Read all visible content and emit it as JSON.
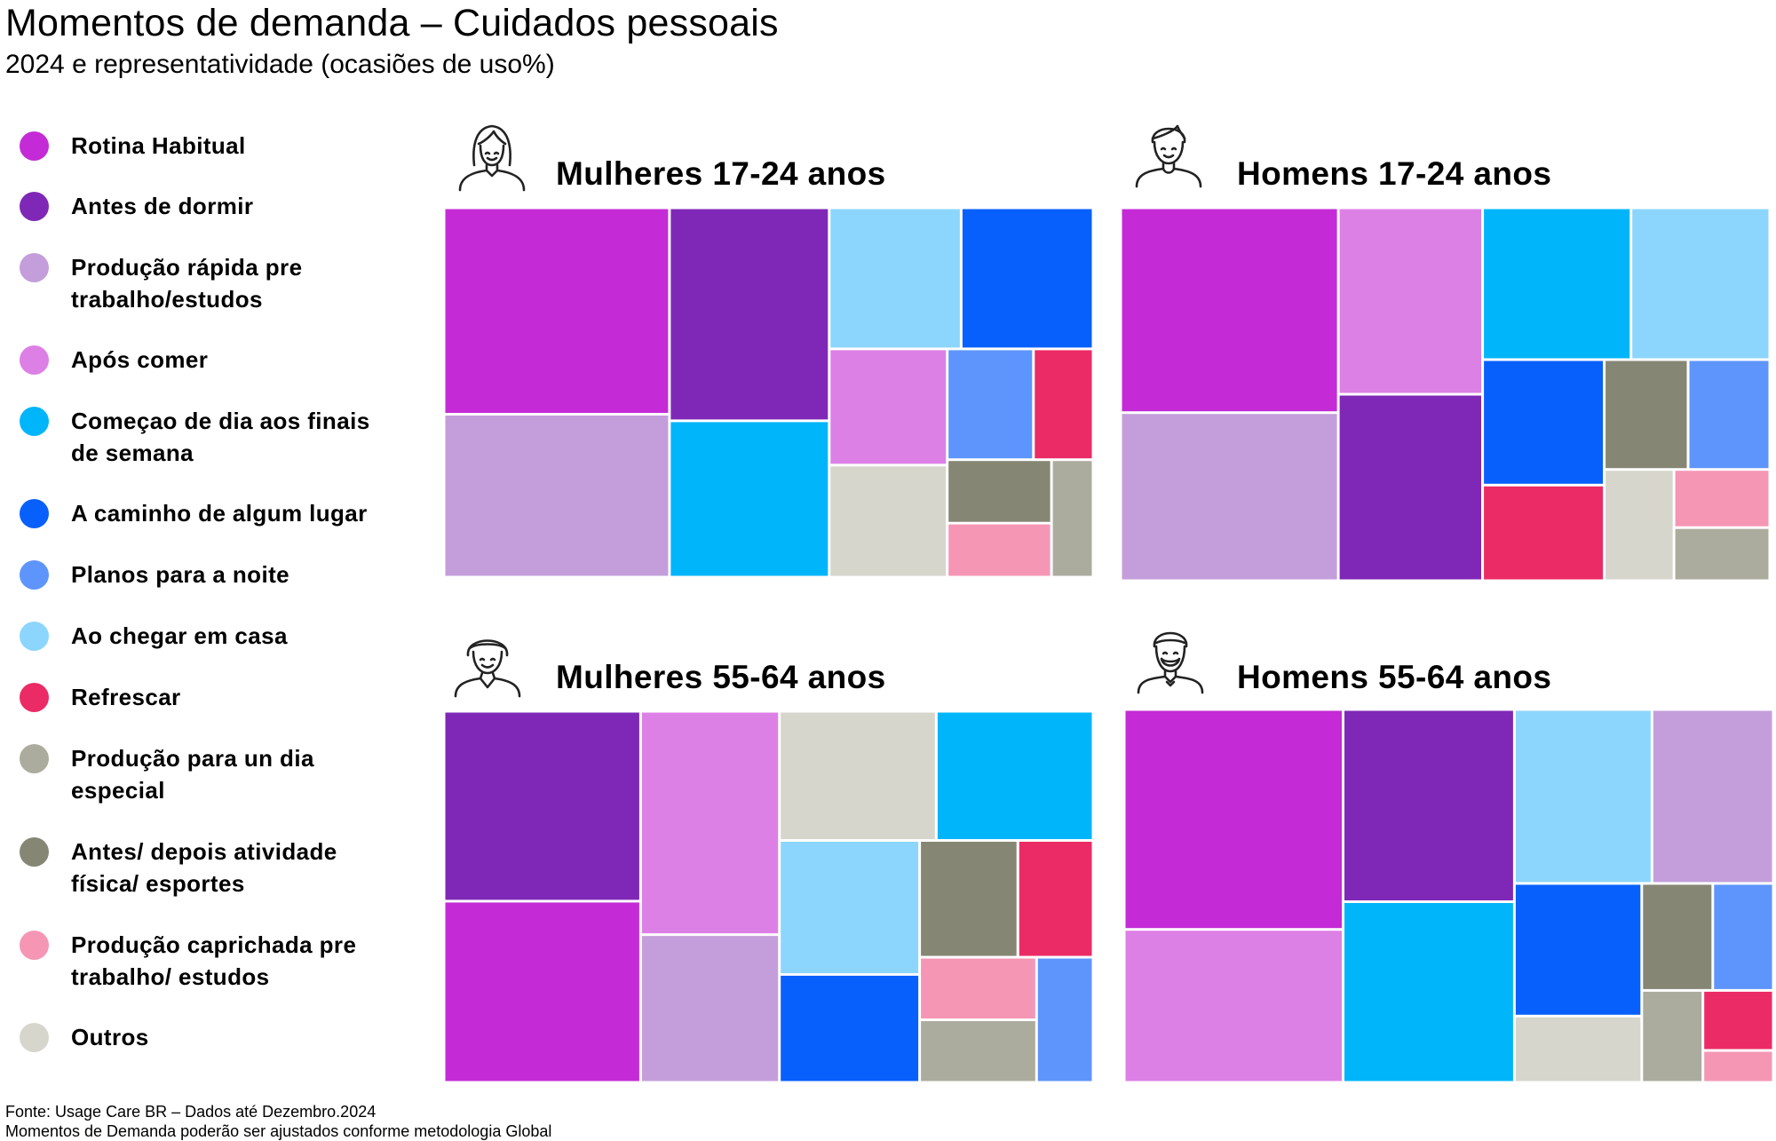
{
  "title": "Momentos de demanda – Cuidados pessoais",
  "subtitle": "2024 e representatividade (ocasiões de uso%)",
  "colors": {
    "Rotina Habitual": "#c42bd6",
    "Antes de dormir": "#7f28b7",
    "Produção rápida pre trabalho/estudos": "#c49edb",
    "Após comer": "#dd80e6",
    "Começao de dia aos finais de semana": "#00b5fa",
    "A caminho de algum lugar": "#0860fc",
    "Planos para a noite": "#5e95fc",
    "Ao chegar em casa": "#8cd6fd",
    "Refrescar": "#eb2b65",
    "Produção para un dia especial": "#acac9e",
    "Antes/ depois atividade física/ esportes": "#858674",
    "Produção caprichada pre trabalho/ estudos": "#f596b5",
    "Outros": "#d6d6cd"
  },
  "legend": {
    "items": [
      {
        "label": "Rotina Habitual",
        "color": "#c42bd6"
      },
      {
        "label": "Antes de dormir",
        "color": "#7f28b7"
      },
      {
        "label": "Produção rápida pre trabalho/estudos",
        "color": "#c49edb"
      },
      {
        "label": "Após comer",
        "color": "#dd80e6"
      },
      {
        "label": "Começao de dia aos finais de semana",
        "color": "#00b5fa"
      },
      {
        "label": "A caminho de algum lugar",
        "color": "#0860fc"
      },
      {
        "label": "Planos para a noite",
        "color": "#5e95fc"
      },
      {
        "label": "Ao chegar em casa",
        "color": "#8cd6fd"
      },
      {
        "label": "Refrescar",
        "color": "#eb2b65"
      },
      {
        "label": "Produção para un dia especial",
        "color": "#acac9e"
      },
      {
        "label": "Antes/ depois atividade física/ esportes",
        "color": "#858674"
      },
      {
        "label": "Produção caprichada pre trabalho/ estudos",
        "color": "#f596b5"
      },
      {
        "label": "Outros",
        "color": "#d6d6cd"
      }
    ]
  },
  "chart_data": [
    {
      "type": "treemap",
      "title": "Mulheres 17-24 anos",
      "avatar": "woman-long-hair-icon",
      "series": [
        {
          "name": "Rotina Habitual",
          "value": 19.0
        },
        {
          "name": "Produção rápida pre trabalho/estudos",
          "value": 15.0
        },
        {
          "name": "Antes de dormir",
          "value": 13.9
        },
        {
          "name": "Começao de dia aos finais de semana",
          "value": 10.2
        },
        {
          "name": "Ao chegar em casa",
          "value": 7.6
        },
        {
          "name": "A caminho de algum lugar",
          "value": 7.6
        },
        {
          "name": "Após comer",
          "value": 5.6
        },
        {
          "name": "Outros",
          "value": 5.4
        },
        {
          "name": "Planos para a noite",
          "value": 3.9
        },
        {
          "name": "Refrescar",
          "value": 2.7
        },
        {
          "name": "Antes/ depois atividade física/ esportes",
          "value": 2.7
        },
        {
          "name": "Produção caprichada pre trabalho/ estudos",
          "value": 2.3
        },
        {
          "name": "Produção para un dia especial",
          "value": 2.0
        }
      ]
    },
    {
      "type": "treemap",
      "title": "Homens 17-24 anos",
      "avatar": "man-short-hair-icon",
      "series": [
        {
          "name": "Rotina Habitual",
          "value": 18.4
        },
        {
          "name": "Produção rápida pre trabalho/estudos",
          "value": 15.1
        },
        {
          "name": "Após comer",
          "value": 11.1
        },
        {
          "name": "Antes de dormir",
          "value": 11.1
        },
        {
          "name": "Começao de dia aos finais de semana",
          "value": 9.3
        },
        {
          "name": "Ao chegar em casa",
          "value": 8.7
        },
        {
          "name": "A caminho de algum lugar",
          "value": 6.3
        },
        {
          "name": "Refrescar",
          "value": 4.8
        },
        {
          "name": "Antes/ depois atividade física/ esportes",
          "value": 3.8
        },
        {
          "name": "Outros",
          "value": 3.2
        },
        {
          "name": "Planos para a noite",
          "value": 3.7
        },
        {
          "name": "Produção caprichada pre trabalho/ estudos",
          "value": 2.3
        },
        {
          "name": "Produção para un dia especial",
          "value": 2.1
        }
      ]
    },
    {
      "type": "treemap",
      "title": "Mulheres 55-64 anos",
      "avatar": "older-woman-icon",
      "series": [
        {
          "name": "Antes de dormir",
          "value": 15.3
        },
        {
          "name": "Rotina Habitual",
          "value": 14.6
        },
        {
          "name": "Após comer",
          "value": 12.7
        },
        {
          "name": "Produção rápida pre trabalho/estudos",
          "value": 8.4
        },
        {
          "name": "Outros",
          "value": 8.3
        },
        {
          "name": "Começao de dia aos finais de semana",
          "value": 8.3
        },
        {
          "name": "Ao chegar em casa",
          "value": 7.7
        },
        {
          "name": "A caminho de algum lugar",
          "value": 6.2
        },
        {
          "name": "Antes/ depois atividade física/ esportes",
          "value": 4.7
        },
        {
          "name": "Refrescar",
          "value": 3.6
        },
        {
          "name": "Planos para a noite",
          "value": 2.9
        },
        {
          "name": "Produção caprichada pre trabalho/ estudos",
          "value": 3.0
        },
        {
          "name": "Produção para un dia especial",
          "value": 3.0
        }
      ]
    },
    {
      "type": "treemap",
      "title": "Homens 55-64 anos",
      "avatar": "older-man-beard-icon",
      "series": [
        {
          "name": "Rotina Habitual",
          "value": 17.1
        },
        {
          "name": "Antes de dormir",
          "value": 11.7
        },
        {
          "name": "Após comer",
          "value": 11.9
        },
        {
          "name": "Começao de dia aos finais de semana",
          "value": 11.0
        },
        {
          "name": "Ao chegar em casa",
          "value": 8.5
        },
        {
          "name": "Produção rápida pre trabalho/estudos",
          "value": 7.5
        },
        {
          "name": "A caminho de algum lugar",
          "value": 6.0
        },
        {
          "name": "Outros",
          "value": 3.0
        },
        {
          "name": "Antes/ depois atividade física/ esportes",
          "value": 2.7
        },
        {
          "name": "Planos para a noite",
          "value": 2.3
        },
        {
          "name": "Produção para un dia especial",
          "value": 2.0
        },
        {
          "name": "Refrescar",
          "value": 1.5
        },
        {
          "name": "Produção caprichada pre trabalho/ estudos",
          "value": 0.8
        }
      ]
    }
  ],
  "footer": {
    "source": "Fonte: Usage Care BR – Dados até Dezembro.2024",
    "note": "Momentos de Demanda poderão ser ajustados conforme metodologia Global"
  }
}
